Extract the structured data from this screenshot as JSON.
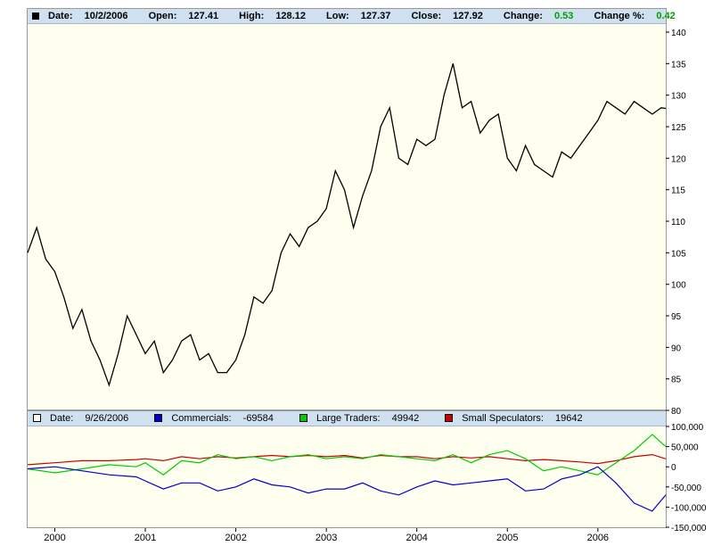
{
  "price_header": {
    "date_label": "Date:",
    "date": "10/2/2006",
    "open_label": "Open:",
    "open": "127.41",
    "high_label": "High:",
    "high": "128.12",
    "low_label": "Low:",
    "low": "127.37",
    "close_label": "Close:",
    "close": "127.92",
    "change_label": "Change:",
    "change": "0.53",
    "change_pct_label": "Change %:",
    "change_pct": "0.42"
  },
  "cot_header": {
    "date_label": "Date:",
    "date": "9/26/2006",
    "commercials_label": "Commercials:",
    "commercials": "-69584",
    "large_label": "Large Traders:",
    "large": "49942",
    "small_label": "Small Speculators:",
    "small": "19642"
  },
  "colors": {
    "price": "#000000",
    "commercials": "#0000cc",
    "large_traders": "#00cc00",
    "small_speculators": "#cc0000",
    "positive_change": "#00a000",
    "header_bg": "#cfe0f0",
    "plot_bg": "#fffff0"
  },
  "chart_data": [
    {
      "type": "line",
      "series": [
        {
          "x": [
            1999.7,
            1999.8,
            1999.9,
            2000.0,
            2000.1,
            2000.2,
            2000.3,
            2000.4,
            2000.5,
            2000.6,
            2000.7,
            2000.8,
            2000.9,
            2001.0,
            2001.1,
            2001.2,
            2001.3,
            2001.4,
            2001.5,
            2001.6,
            2001.7,
            2001.8,
            2001.9,
            2002.0,
            2002.1,
            2002.2,
            2002.3,
            2002.4,
            2002.5,
            2002.6,
            2002.7,
            2002.8,
            2002.9,
            2003.0,
            2003.1,
            2003.2,
            2003.3,
            2003.4,
            2003.5,
            2003.6,
            2003.7,
            2003.8,
            2003.9,
            2004.0,
            2004.1,
            2004.2,
            2004.3,
            2004.4,
            2004.5,
            2004.6,
            2004.7,
            2004.8,
            2004.9,
            2005.0,
            2005.1,
            2005.2,
            2005.3,
            2005.4,
            2005.5,
            2005.6,
            2005.7,
            2005.8,
            2005.9,
            2006.0,
            2006.1,
            2006.2,
            2006.3,
            2006.4,
            2006.5,
            2006.6,
            2006.7,
            2006.75
          ],
          "values": [
            105,
            109,
            104,
            102,
            98,
            93,
            96,
            91,
            88,
            84,
            89,
            95,
            92,
            89,
            91,
            86,
            88,
            91,
            92,
            88,
            89,
            86,
            86,
            88,
            92,
            98,
            97,
            99,
            105,
            108,
            106,
            109,
            110,
            112,
            118,
            115,
            109,
            114,
            118,
            125,
            128,
            120,
            119,
            123,
            122,
            123,
            130,
            135,
            128,
            129,
            124,
            126,
            127,
            120,
            118,
            122,
            119,
            118,
            117,
            121,
            120,
            122,
            124,
            126,
            129,
            128,
            127,
            129,
            128,
            127,
            128,
            127.9
          ]
        }
      ],
      "ylim": [
        80,
        140
      ],
      "yticks": [
        80,
        85,
        90,
        95,
        100,
        105,
        110,
        115,
        120,
        125,
        130,
        135,
        140
      ],
      "xlim": [
        1999.7,
        2006.75
      ],
      "xticks": [
        "2000",
        "2001",
        "2002",
        "2003",
        "2004",
        "2005",
        "2006"
      ],
      "grid": false
    },
    {
      "type": "line",
      "series": [
        {
          "name": "Commercials",
          "x": [
            1999.7,
            2000.0,
            2000.3,
            2000.6,
            2000.9,
            2001.0,
            2001.2,
            2001.4,
            2001.6,
            2001.8,
            2002.0,
            2002.2,
            2002.4,
            2002.6,
            2002.8,
            2003.0,
            2003.2,
            2003.4,
            2003.6,
            2003.8,
            2004.0,
            2004.2,
            2004.4,
            2004.6,
            2004.8,
            2005.0,
            2005.2,
            2005.4,
            2005.6,
            2005.8,
            2006.0,
            2006.2,
            2006.4,
            2006.6,
            2006.75
          ],
          "values": [
            -5000,
            0,
            -10000,
            -20000,
            -25000,
            -35000,
            -55000,
            -40000,
            -40000,
            -60000,
            -50000,
            -30000,
            -45000,
            -50000,
            -65000,
            -55000,
            -55000,
            -40000,
            -60000,
            -70000,
            -50000,
            -35000,
            -45000,
            -40000,
            -35000,
            -30000,
            -60000,
            -55000,
            -30000,
            -20000,
            0,
            -40000,
            -90000,
            -110000,
            -69584
          ]
        },
        {
          "name": "Large Traders",
          "x": [
            1999.7,
            2000.0,
            2000.3,
            2000.6,
            2000.9,
            2001.0,
            2001.2,
            2001.4,
            2001.6,
            2001.8,
            2002.0,
            2002.2,
            2002.4,
            2002.6,
            2002.8,
            2003.0,
            2003.2,
            2003.4,
            2003.6,
            2003.8,
            2004.0,
            2004.2,
            2004.4,
            2004.6,
            2004.8,
            2005.0,
            2005.2,
            2005.4,
            2005.6,
            2005.8,
            2006.0,
            2006.2,
            2006.4,
            2006.6,
            2006.75
          ],
          "values": [
            -5000,
            -15000,
            -5000,
            5000,
            0,
            10000,
            -20000,
            15000,
            10000,
            30000,
            20000,
            25000,
            15000,
            25000,
            30000,
            20000,
            25000,
            20000,
            30000,
            25000,
            20000,
            15000,
            30000,
            10000,
            30000,
            40000,
            20000,
            -10000,
            0,
            -10000,
            -20000,
            10000,
            40000,
            80000,
            49942
          ]
        },
        {
          "name": "Small Speculators",
          "x": [
            1999.7,
            2000.0,
            2000.3,
            2000.6,
            2000.9,
            2001.0,
            2001.2,
            2001.4,
            2001.6,
            2001.8,
            2002.0,
            2002.2,
            2002.4,
            2002.6,
            2002.8,
            2003.0,
            2003.2,
            2003.4,
            2003.6,
            2003.8,
            2004.0,
            2004.2,
            2004.4,
            2004.6,
            2004.8,
            2005.0,
            2005.2,
            2005.4,
            2005.6,
            2005.8,
            2006.0,
            2006.2,
            2006.4,
            2006.6,
            2006.75
          ],
          "values": [
            5000,
            10000,
            15000,
            15000,
            18000,
            20000,
            15000,
            25000,
            20000,
            25000,
            22000,
            25000,
            28000,
            25000,
            28000,
            25000,
            28000,
            22000,
            28000,
            25000,
            25000,
            20000,
            25000,
            22000,
            25000,
            20000,
            15000,
            18000,
            15000,
            12000,
            8000,
            15000,
            25000,
            30000,
            19642
          ]
        }
      ],
      "ylim": [
        -150000,
        100000
      ],
      "yticks": [
        -150000,
        -100000,
        -50000,
        0,
        50000,
        100000
      ],
      "ytick_labels": [
        "-150,000",
        "-100,000",
        "-50,000",
        "0",
        "50,000",
        "100,000"
      ],
      "grid": false
    }
  ]
}
